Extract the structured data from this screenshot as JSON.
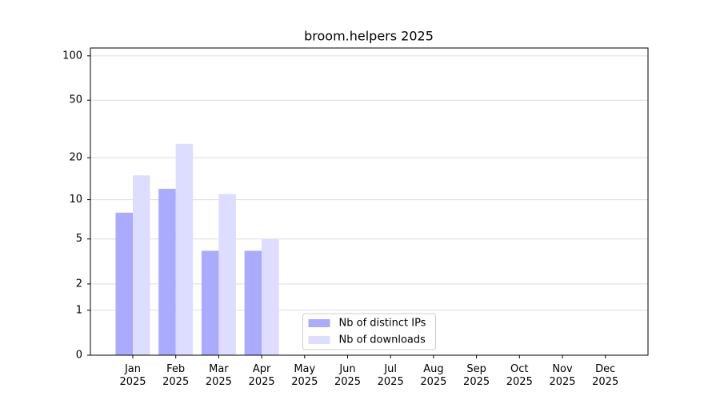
{
  "chart_data": {
    "type": "bar",
    "title": "broom.helpers 2025",
    "categories": [
      "Jan\n2025",
      "Feb\n2025",
      "Mar\n2025",
      "Apr\n2025",
      "May\n2025",
      "Jun\n2025",
      "Jul\n2025",
      "Aug\n2025",
      "Sep\n2025",
      "Oct\n2025",
      "Nov\n2025",
      "Dec\n2025"
    ],
    "series": [
      {
        "name": "Nb of distinct IPs",
        "color": "#aaaaff",
        "values": [
          8,
          12,
          4,
          4,
          null,
          null,
          null,
          null,
          null,
          null,
          null,
          null
        ]
      },
      {
        "name": "Nb of downloads",
        "color": "#ddddff",
        "values": [
          15,
          25,
          11,
          5,
          null,
          null,
          null,
          null,
          null,
          null,
          null,
          null
        ]
      }
    ],
    "y_scale": "log1p",
    "ylim": [
      0,
      113
    ],
    "yticks": [
      0,
      1,
      2,
      5,
      10,
      20,
      50,
      100
    ],
    "grid": true,
    "legend": "lower center"
  }
}
